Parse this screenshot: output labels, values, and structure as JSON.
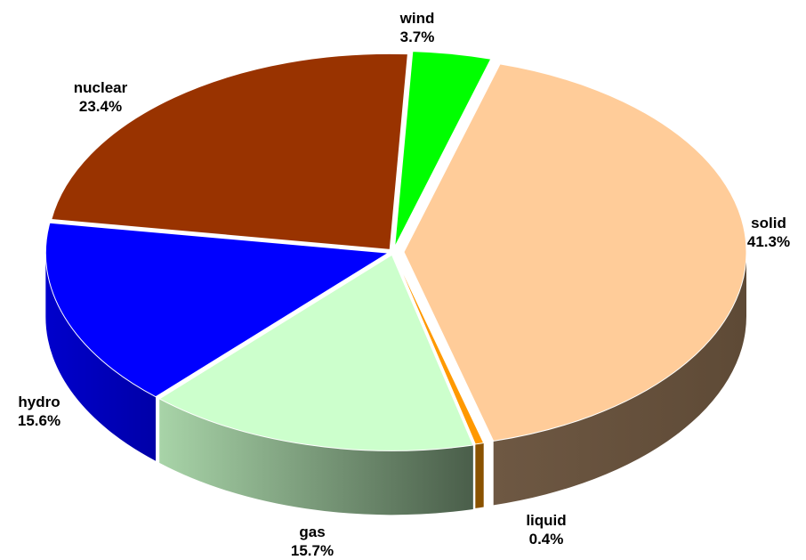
{
  "chart_data": {
    "type": "pie",
    "style": "3d-exploded",
    "start_angle_deg": -87,
    "direction": "clockwise",
    "slices": [
      {
        "key": "wind",
        "label": "wind",
        "value": 3.7,
        "value_label": "3.7%",
        "color": "#00ff00",
        "side_color": "#00b800"
      },
      {
        "key": "solid",
        "label": "solid",
        "value": 41.3,
        "value_label": "41.3%",
        "color": "#ffcc99",
        "side_color": "#6b5540"
      },
      {
        "key": "liquid",
        "label": "liquid",
        "value": 0.4,
        "value_label": "0.4%",
        "color": "#ff9900",
        "side_color": "#8a5200"
      },
      {
        "key": "gas",
        "label": "gas",
        "value": 15.7,
        "value_label": "15.7%",
        "color": "#ccffcc",
        "side_color": "#8db58d"
      },
      {
        "key": "hydro",
        "label": "hydro",
        "value": 15.6,
        "value_label": "15.6%",
        "color": "#0000ff",
        "side_color": "#0000b0"
      },
      {
        "key": "nuclear",
        "label": "nuclear",
        "value": 23.4,
        "value_label": "23.4%",
        "color": "#993300",
        "side_color": "#6a2400"
      }
    ]
  }
}
